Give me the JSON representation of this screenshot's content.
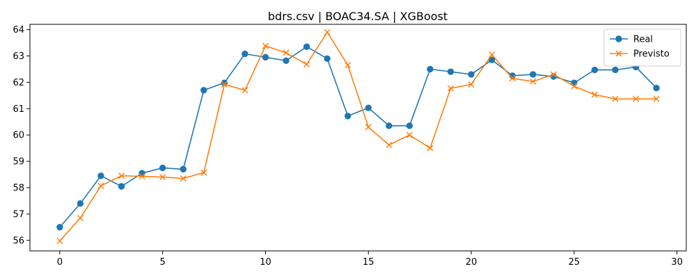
{
  "chart_data": {
    "type": "line",
    "title": "bdrs.csv | BOAC34.SA | XGBoost",
    "xlabel": "",
    "ylabel": "",
    "xlim": [
      -1.45,
      30.45
    ],
    "ylim": [
      55.6,
      64.2
    ],
    "xticks": [
      0,
      5,
      10,
      15,
      20,
      25,
      30
    ],
    "yticks": [
      56,
      57,
      58,
      59,
      60,
      61,
      62,
      63,
      64
    ],
    "grid": false,
    "legend_position": "top-right",
    "x": [
      0,
      1,
      2,
      3,
      4,
      5,
      6,
      7,
      8,
      9,
      10,
      11,
      12,
      13,
      14,
      15,
      16,
      17,
      18,
      19,
      20,
      21,
      22,
      23,
      24,
      25,
      26,
      27,
      28,
      29
    ],
    "series": [
      {
        "name": "Real",
        "color": "#1f77b4",
        "marker": "circle",
        "values": [
          56.5,
          57.4,
          58.45,
          58.05,
          58.55,
          58.75,
          58.7,
          61.7,
          61.98,
          63.08,
          62.95,
          62.82,
          63.35,
          62.9,
          60.72,
          61.03,
          60.35,
          60.35,
          62.5,
          62.4,
          62.3,
          62.85,
          62.25,
          62.3,
          62.22,
          61.98,
          62.47,
          62.47,
          62.58,
          61.78
        ]
      },
      {
        "name": "Previsto",
        "color": "#ff7f0e",
        "marker": "x",
        "values": [
          55.98,
          56.85,
          58.07,
          58.45,
          58.43,
          58.4,
          58.35,
          58.57,
          61.92,
          61.7,
          63.38,
          63.12,
          62.68,
          63.9,
          62.65,
          60.3,
          59.62,
          60.0,
          59.5,
          61.77,
          61.92,
          63.05,
          62.15,
          62.03,
          62.3,
          61.85,
          61.53,
          61.37,
          61.37,
          61.37
        ]
      }
    ]
  }
}
